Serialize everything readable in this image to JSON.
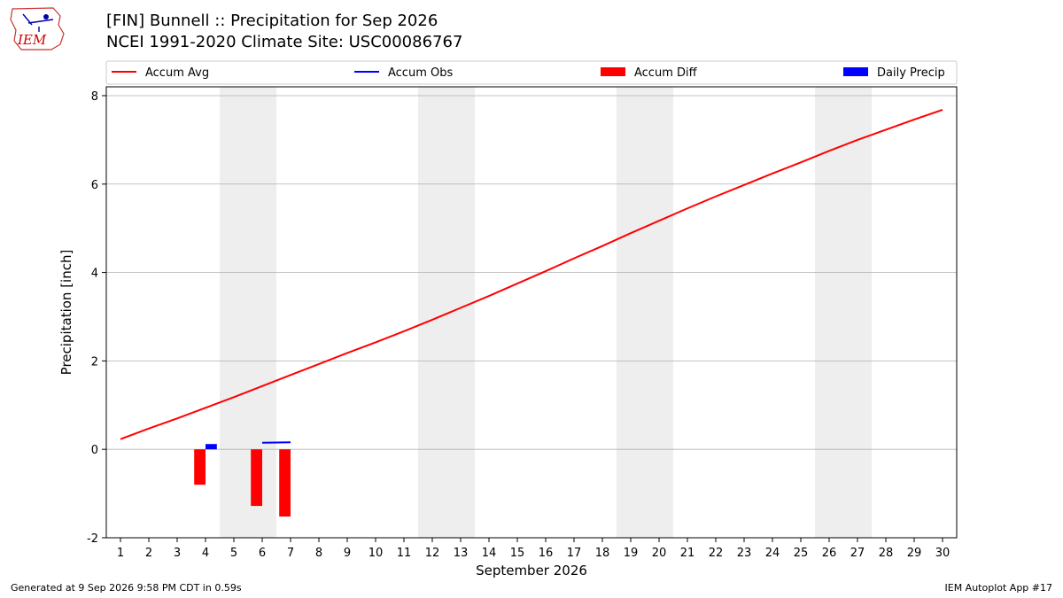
{
  "logo": {
    "text": "IEM"
  },
  "header": {
    "title_line1": "[FIN] Bunnell :: Precipitation for Sep 2026",
    "title_line2": "NCEI 1991-2020 Climate Site: USC00086767"
  },
  "footer": {
    "left": "Generated at 9 Sep 2026 9:58 PM CDT in 0.59s",
    "right": "IEM Autoplot App #17"
  },
  "colors": {
    "accum_avg": "#ff0000",
    "accum_obs": "#0000ff",
    "accum_diff": "#ff0000",
    "daily_precip": "#0000ff",
    "weekend_band": "#eeeeee",
    "grid": "#b0b0b0"
  },
  "chart_data": {
    "type": "line",
    "xlabel": "September 2026",
    "ylabel": "Precipitation [inch]",
    "xlim": [
      0.5,
      30.5
    ],
    "ylim": [
      -2,
      8.2
    ],
    "yticks": [
      -2,
      0,
      2,
      4,
      6,
      8
    ],
    "x": [
      1,
      2,
      3,
      4,
      5,
      6,
      7,
      8,
      9,
      10,
      11,
      12,
      13,
      14,
      15,
      16,
      17,
      18,
      19,
      20,
      21,
      22,
      23,
      24,
      25,
      26,
      27,
      28,
      29,
      30
    ],
    "grid": "horizontal",
    "legend": {
      "placement": "top",
      "entries": [
        "Accum Avg",
        "Accum Obs",
        "Accum Diff",
        "Daily Precip"
      ]
    },
    "weekend_days": [
      5,
      6,
      12,
      13,
      19,
      20,
      26,
      27
    ],
    "series": [
      {
        "name": "Accum Avg",
        "kind": "line",
        "values": [
          0.23,
          0.47,
          0.7,
          0.94,
          1.18,
          1.43,
          1.68,
          1.93,
          2.18,
          2.42,
          2.67,
          2.93,
          3.2,
          3.47,
          3.75,
          4.03,
          4.32,
          4.6,
          4.89,
          5.17,
          5.45,
          5.72,
          5.98,
          6.24,
          6.49,
          6.75,
          7.0,
          7.23,
          7.46,
          7.68
        ]
      },
      {
        "name": "Accum Obs",
        "kind": "line",
        "x": [
          6,
          7
        ],
        "values": [
          0.15,
          0.16
        ]
      },
      {
        "name": "Accum Diff",
        "kind": "bar",
        "offset": -0.2,
        "x": [
          4,
          6,
          7
        ],
        "values": [
          -0.8,
          -1.28,
          -1.52
        ]
      },
      {
        "name": "Daily Precip",
        "kind": "bar",
        "offset": 0.2,
        "x": [
          4
        ],
        "values": [
          0.12
        ]
      }
    ]
  }
}
